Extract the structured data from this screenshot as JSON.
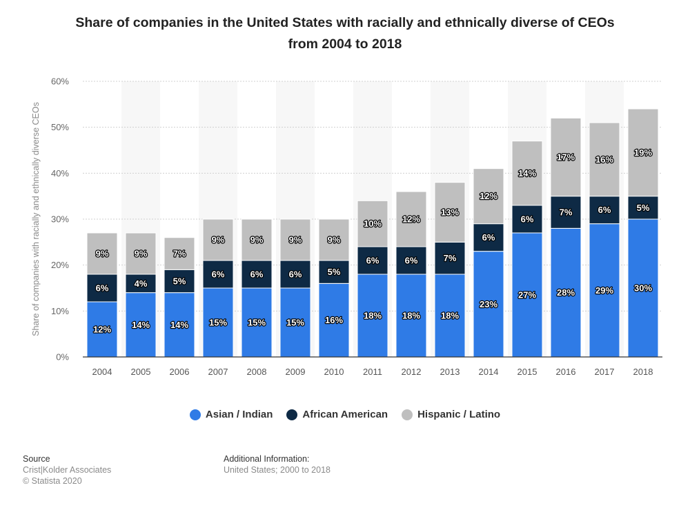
{
  "chart_data": {
    "type": "bar",
    "stacked": true,
    "title": "Share of companies in the United States with racially and ethnically diverse of CEOs from 2004 to 2018",
    "title_lines": [
      "Share of companies in the United States with racially and ethnically diverse of CEOs",
      "from 2004 to 2018"
    ],
    "xlabel": "",
    "ylabel": "Share of companies with racially and ethnically diverse CEOs",
    "ylim": [
      0,
      60
    ],
    "yticks": [
      0,
      10,
      20,
      30,
      40,
      50,
      60
    ],
    "ytick_labels": [
      "0%",
      "10%",
      "20%",
      "30%",
      "40%",
      "50%",
      "60%"
    ],
    "grid": true,
    "legend_position": "bottom",
    "categories": [
      "2004",
      "2005",
      "2006",
      "2007",
      "2008",
      "2009",
      "2010",
      "2011",
      "2012",
      "2013",
      "2014",
      "2015",
      "2016",
      "2017",
      "2018"
    ],
    "series": [
      {
        "name": "Asian / Indian",
        "color": "#2f7be6",
        "values": [
          12,
          14,
          14,
          15,
          15,
          15,
          16,
          18,
          18,
          18,
          23,
          27,
          28,
          29,
          30
        ]
      },
      {
        "name": "African American",
        "color": "#0e2a45",
        "values": [
          6,
          4,
          5,
          6,
          6,
          6,
          5,
          6,
          6,
          7,
          6,
          6,
          7,
          6,
          5
        ]
      },
      {
        "name": "Hispanic / Latino",
        "color": "#bfbfbf",
        "values": [
          9,
          9,
          7,
          9,
          9,
          9,
          9,
          10,
          12,
          13,
          12,
          14,
          17,
          16,
          19
        ]
      }
    ],
    "value_suffix": "%"
  },
  "footer": {
    "source_label": "Source",
    "source_lines": [
      "Crist|Kolder Associates",
      "© Statista 2020"
    ],
    "additional_label": "Additional Information:",
    "additional_text": "United States; 2000 to 2018"
  }
}
